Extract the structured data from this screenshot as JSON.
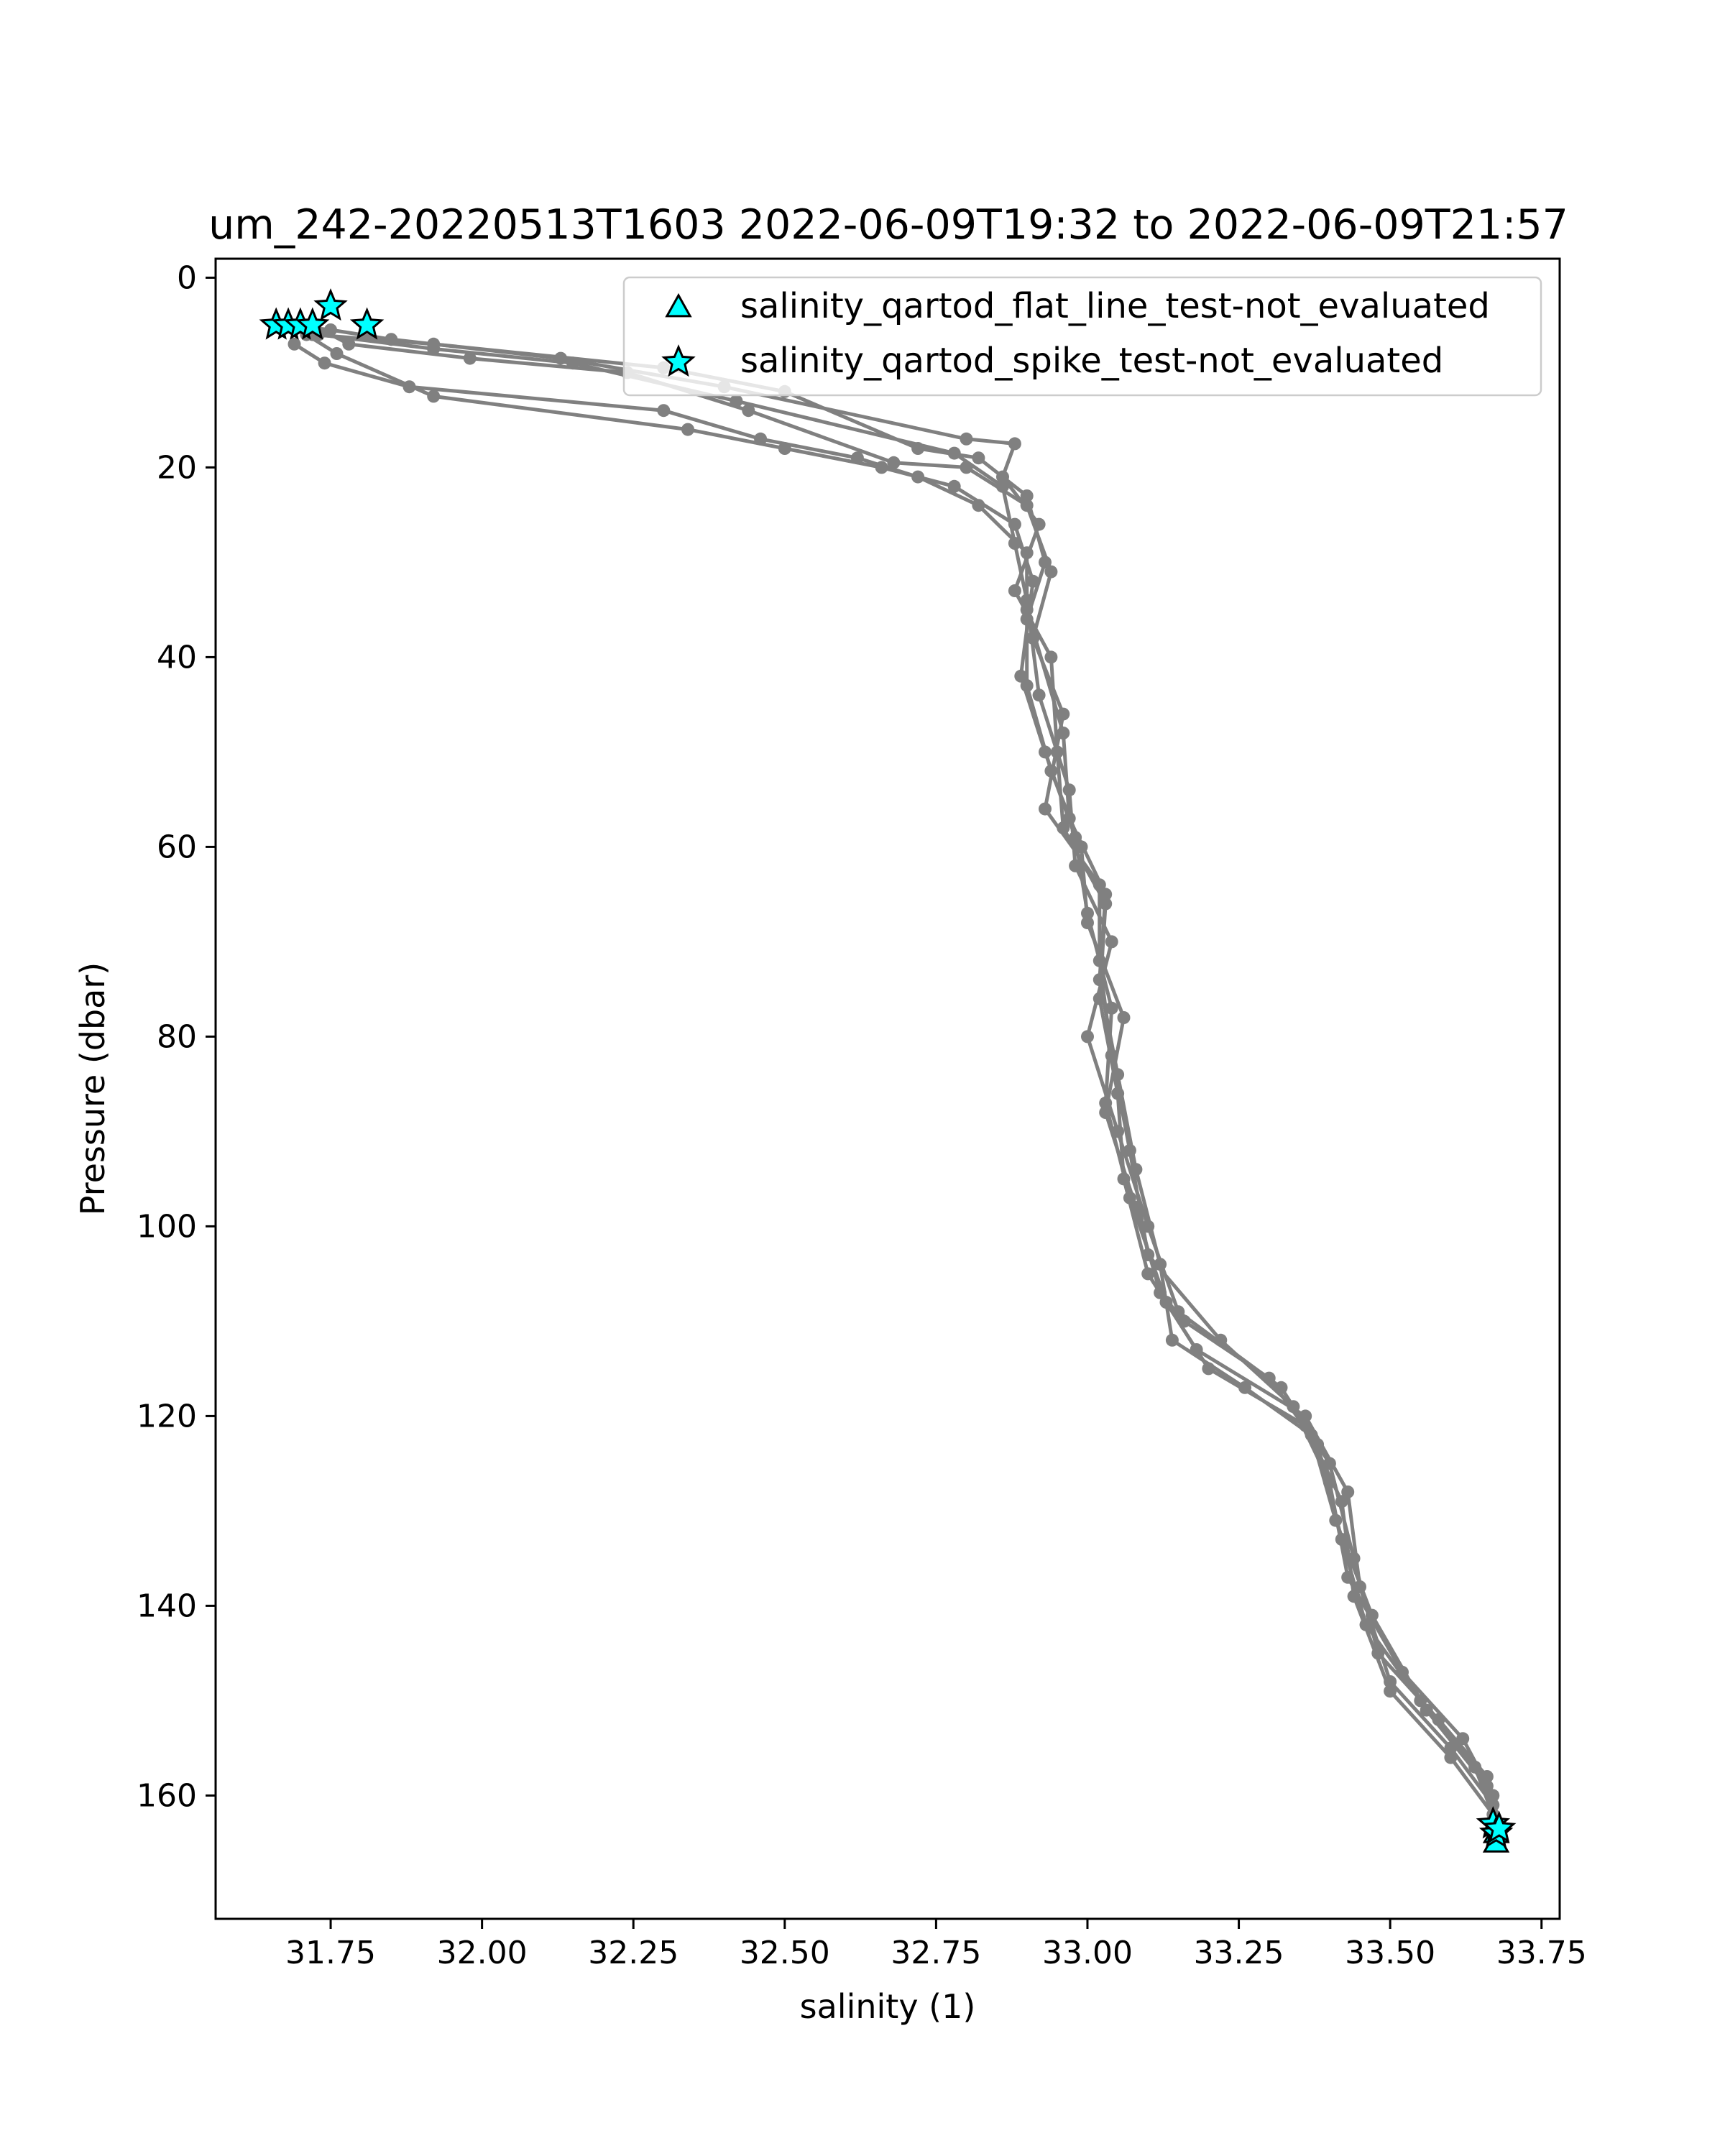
{
  "chart_data": {
    "type": "scatter",
    "title": "um_242-20220513T1603 2022-06-09T19:32 to 2022-06-09T21:57",
    "xlabel": "salinity (1)",
    "ylabel": "Pressure (dbar)",
    "xlim": [
      31.56,
      33.78
    ],
    "ylim": [
      173,
      -2
    ],
    "y_inverted": true,
    "x_ticks": [
      "31.75",
      "32.00",
      "32.25",
      "32.50",
      "32.75",
      "33.00",
      "33.25",
      "33.50",
      "33.75"
    ],
    "x_tick_values": [
      31.75,
      32.0,
      32.25,
      32.5,
      32.75,
      33.0,
      33.25,
      33.5,
      33.75
    ],
    "y_ticks": [
      "0",
      "20",
      "40",
      "60",
      "80",
      "100",
      "120",
      "140",
      "160"
    ],
    "y_tick_values": [
      0,
      20,
      40,
      60,
      80,
      100,
      120,
      140,
      160
    ],
    "grid": false,
    "legend_position": "upper right",
    "colors": {
      "profile_line": "#808080",
      "flag_marker_fill": "#00ffff",
      "flag_marker_edge": "#000000"
    },
    "series": [
      {
        "style": "line-with-dots",
        "color": "#808080",
        "profiles": [
          [
            [
              31.68,
              5
            ],
            [
              31.75,
              5.5
            ],
            [
              31.85,
              6.5
            ],
            [
              32.13,
              8.5
            ],
            [
              32.4,
              11.5
            ],
            [
              32.8,
              17
            ],
            [
              32.88,
              17.5
            ],
            [
              32.86,
              21
            ],
            [
              32.92,
              26
            ],
            [
              32.88,
              33
            ],
            [
              32.94,
              40
            ],
            [
              32.95,
              50
            ],
            [
              32.96,
              58
            ],
            [
              33.03,
              66
            ],
            [
              33.02,
              76
            ],
            [
              33.05,
              86
            ],
            [
              33.06,
              95
            ],
            [
              33.1,
              105
            ],
            [
              33.18,
              113
            ],
            [
              33.36,
              120
            ],
            [
              33.43,
              128
            ],
            [
              33.45,
              138
            ],
            [
              33.5,
              148
            ],
            [
              33.6,
              155
            ],
            [
              33.67,
              161
            ],
            [
              33.675,
              163.5
            ]
          ],
          [
            [
              31.7,
              5
            ],
            [
              31.72,
              6
            ],
            [
              31.92,
              7
            ],
            [
              32.3,
              9.5
            ],
            [
              32.5,
              12
            ],
            [
              32.72,
              18
            ],
            [
              32.82,
              19
            ],
            [
              32.9,
              23
            ],
            [
              32.93,
              30
            ],
            [
              32.9,
              36
            ],
            [
              32.9,
              43
            ],
            [
              32.94,
              52
            ],
            [
              32.99,
              60
            ],
            [
              33.0,
              68
            ],
            [
              33.06,
              78
            ],
            [
              33.03,
              88
            ],
            [
              33.08,
              98
            ],
            [
              33.12,
              107
            ],
            [
              33.16,
              110
            ],
            [
              33.3,
              116
            ],
            [
              33.38,
              123
            ],
            [
              33.42,
              133
            ],
            [
              33.46,
              142
            ],
            [
              33.55,
              150
            ],
            [
              33.64,
              157
            ],
            [
              33.675,
              163
            ]
          ],
          [
            [
              31.66,
              5
            ],
            [
              31.73,
              6
            ],
            [
              31.92,
              7.5
            ],
            [
              32.15,
              9
            ],
            [
              32.42,
              13
            ],
            [
              32.78,
              18.5
            ],
            [
              32.86,
              22
            ],
            [
              32.88,
              28
            ],
            [
              32.9,
              34
            ],
            [
              32.92,
              44
            ],
            [
              32.97,
              54
            ],
            [
              32.98,
              62
            ],
            [
              33.04,
              70
            ],
            [
              33.0,
              80
            ],
            [
              33.05,
              90
            ],
            [
              33.1,
              100
            ],
            [
              33.15,
              109
            ],
            [
              33.32,
              117
            ],
            [
              33.4,
              125
            ],
            [
              33.44,
              135
            ],
            [
              33.48,
              145
            ],
            [
              33.58,
              152
            ],
            [
              33.66,
              158
            ],
            [
              33.67,
              164
            ]
          ],
          [
            [
              31.72,
              5
            ],
            [
              31.78,
              7
            ],
            [
              31.98,
              8.5
            ],
            [
              32.24,
              10
            ],
            [
              32.44,
              14
            ],
            [
              32.68,
              19.5
            ],
            [
              32.8,
              20
            ],
            [
              32.9,
              24
            ],
            [
              32.94,
              31
            ],
            [
              32.91,
              38
            ],
            [
              32.96,
              46
            ],
            [
              32.93,
              56
            ],
            [
              33.02,
              64
            ],
            [
              33.02,
              72
            ],
            [
              33.04,
              82
            ],
            [
              33.07,
              92
            ],
            [
              33.1,
              103
            ],
            [
              33.22,
              112
            ],
            [
              33.34,
              119
            ],
            [
              33.4,
              127
            ],
            [
              33.43,
              137
            ],
            [
              33.52,
              147
            ],
            [
              33.62,
              154
            ],
            [
              33.67,
              160
            ],
            [
              33.675,
              164.5
            ]
          ],
          [
            [
              31.69,
              7
            ],
            [
              31.74,
              9
            ],
            [
              31.88,
              11.5
            ],
            [
              32.3,
              14
            ],
            [
              32.46,
              17
            ],
            [
              32.62,
              19
            ],
            [
              32.72,
              21
            ],
            [
              32.82,
              24
            ],
            [
              32.9,
              29
            ],
            [
              32.9,
              35
            ],
            [
              32.96,
              48
            ],
            [
              32.97,
              57
            ],
            [
              33.03,
              65
            ],
            [
              33.02,
              74
            ],
            [
              33.05,
              84
            ],
            [
              33.08,
              94
            ],
            [
              33.12,
              104
            ],
            [
              33.14,
              112
            ],
            [
              33.26,
              117
            ],
            [
              33.37,
              122
            ],
            [
              33.41,
              131
            ],
            [
              33.47,
              141
            ],
            [
              33.56,
              151
            ],
            [
              33.66,
              159
            ],
            [
              33.67,
              165
            ]
          ],
          [
            [
              31.71,
              6
            ],
            [
              31.76,
              8
            ],
            [
              31.92,
              12.5
            ],
            [
              32.34,
              16
            ],
            [
              32.5,
              18
            ],
            [
              32.66,
              20
            ],
            [
              32.78,
              22
            ],
            [
              32.88,
              26
            ],
            [
              32.91,
              32
            ],
            [
              32.89,
              42
            ],
            [
              32.93,
              50
            ],
            [
              32.98,
              59
            ],
            [
              33.0,
              67
            ],
            [
              33.04,
              77
            ],
            [
              33.03,
              87
            ],
            [
              33.07,
              97
            ],
            [
              33.13,
              108
            ],
            [
              33.2,
              115
            ],
            [
              33.36,
              121
            ],
            [
              33.42,
              129
            ],
            [
              33.44,
              139
            ],
            [
              33.5,
              149
            ],
            [
              33.6,
              156
            ],
            [
              33.67,
              162
            ],
            [
              33.675,
              164
            ]
          ]
        ]
      },
      {
        "name": "salinity_qartod_flat_line_test-not_evaluated",
        "marker": "triangle",
        "points": [
          [
            33.675,
            164
          ],
          [
            33.675,
            165
          ]
        ]
      },
      {
        "name": "salinity_qartod_spike_test-not_evaluated",
        "marker": "star",
        "points": [
          [
            31.75,
            3
          ],
          [
            31.66,
            5
          ],
          [
            31.68,
            5
          ],
          [
            31.7,
            5
          ],
          [
            31.72,
            5
          ],
          [
            31.81,
            5
          ],
          [
            33.67,
            163
          ],
          [
            33.675,
            164
          ],
          [
            33.68,
            163.5
          ]
        ]
      }
    ]
  }
}
